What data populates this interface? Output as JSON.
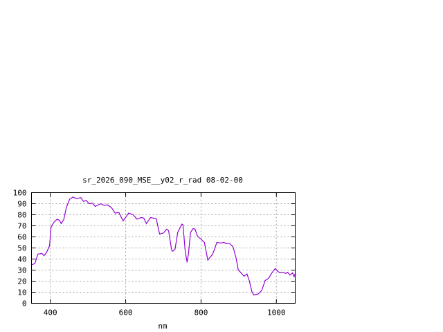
{
  "chart_data": {
    "type": "line",
    "title": "sr_2026_090_MSE__y02_r_rad 08-02-00",
    "xlabel": "nm",
    "ylabel": "",
    "xlim": [
      350,
      1050
    ],
    "ylim": [
      0,
      100
    ],
    "xticks": [
      400,
      600,
      800,
      1000
    ],
    "yticks": [
      0,
      10,
      20,
      30,
      40,
      50,
      60,
      70,
      80,
      90,
      100
    ],
    "grid": true,
    "line_color": "#9400d3",
    "series": [
      {
        "x": [
          350,
          352,
          359,
          367,
          378,
          383,
          390,
          398,
          402,
          409,
          418,
          424,
          429,
          436,
          442,
          451,
          460,
          470,
          481,
          488,
          495,
          503,
          512,
          519,
          534,
          543,
          552,
          562,
          572,
          582,
          593,
          608,
          620,
          630,
          641,
          648,
          655,
          666,
          681,
          690,
          700,
          709,
          714,
          722,
          725,
          731,
          738,
          749,
          752,
          758,
          763,
          767,
          772,
          779,
          784,
          791,
          800,
          809,
          818,
          831,
          842,
          852,
          861,
          867,
          876,
          885,
          893,
          899,
          905,
          914,
          922,
          928,
          935,
          940,
          952,
          961,
          970,
          979,
          988,
          997,
          1003,
          1010,
          1017,
          1025,
          1030,
          1036,
          1043,
          1047,
          1050
        ],
        "y": [
          35,
          35,
          36,
          44.5,
          45,
          43,
          46,
          52,
          69,
          73,
          76,
          75,
          72,
          76,
          86,
          94,
          96,
          94.5,
          95.5,
          92,
          93,
          90,
          90.5,
          87.5,
          90,
          88.5,
          89,
          86.5,
          81.5,
          82,
          74.5,
          81.5,
          80,
          76,
          77.5,
          77,
          72,
          77.5,
          76.5,
          62.5,
          63.5,
          67,
          65.5,
          48,
          47,
          49,
          64,
          71.5,
          71,
          47,
          37,
          46,
          64,
          67.5,
          67,
          60.5,
          58,
          55,
          39,
          44.5,
          55,
          54.5,
          55,
          54,
          54,
          51,
          41,
          30,
          28,
          24.5,
          26.5,
          20.5,
          10.5,
          7.5,
          8.5,
          11.5,
          20.5,
          22.5,
          27.5,
          31.5,
          29,
          27.5,
          28,
          27,
          28,
          25.5,
          27.5,
          24,
          27
        ]
      }
    ]
  }
}
